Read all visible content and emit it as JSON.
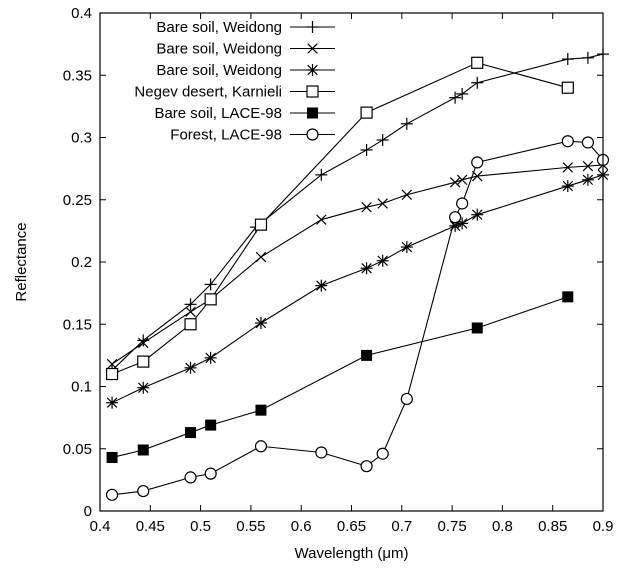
{
  "chart_data": {
    "type": "line",
    "xlabel": "Wavelength (μm)",
    "ylabel": "Reflectance",
    "xlim": [
      0.4,
      0.9
    ],
    "ylim": [
      0,
      0.4
    ],
    "xticks": [
      0.4,
      0.45,
      0.5,
      0.55,
      0.6,
      0.65,
      0.7,
      0.75,
      0.8,
      0.85,
      0.9
    ],
    "yticks": [
      0,
      0.05,
      0.1,
      0.15,
      0.2,
      0.25,
      0.3,
      0.35,
      0.4
    ],
    "xtick_labels": [
      "0.4",
      "0.45",
      "0.5",
      "0.55",
      "0.6",
      "0.65",
      "0.7",
      "0.75",
      "0.8",
      "0.85",
      "0.9"
    ],
    "ytick_labels": [
      "0",
      "0.05",
      "0.1",
      "0.15",
      "0.2",
      "0.25",
      "0.3",
      "0.35",
      "0.4"
    ],
    "grid": false,
    "legend_position": "top-left",
    "series": [
      {
        "name": "Bare soil, Weidong",
        "marker": "plus",
        "color": "#000000",
        "x": [
          0.412,
          0.443,
          0.49,
          0.51,
          0.555,
          0.62,
          0.665,
          0.681,
          0.705,
          0.753,
          0.76,
          0.775,
          0.865,
          0.885,
          0.9
        ],
        "y": [
          0.113,
          0.137,
          0.166,
          0.182,
          0.228,
          0.27,
          0.29,
          0.298,
          0.311,
          0.332,
          0.335,
          0.344,
          0.363,
          0.364,
          0.367
        ]
      },
      {
        "name": "Bare soil, Weidong",
        "marker": "x",
        "color": "#000000",
        "x": [
          0.412,
          0.443,
          0.49,
          0.51,
          0.56,
          0.62,
          0.665,
          0.681,
          0.705,
          0.753,
          0.76,
          0.775,
          0.865,
          0.885,
          0.9
        ],
        "y": [
          0.118,
          0.135,
          0.16,
          0.17,
          0.204,
          0.234,
          0.244,
          0.247,
          0.254,
          0.264,
          0.266,
          0.269,
          0.276,
          0.277,
          0.278
        ]
      },
      {
        "name": "Bare soil, Weidong",
        "marker": "asterisk",
        "color": "#000000",
        "x": [
          0.412,
          0.443,
          0.49,
          0.51,
          0.56,
          0.62,
          0.665,
          0.681,
          0.705,
          0.753,
          0.76,
          0.775,
          0.865,
          0.885,
          0.9
        ],
        "y": [
          0.087,
          0.099,
          0.115,
          0.123,
          0.151,
          0.181,
          0.195,
          0.201,
          0.212,
          0.229,
          0.231,
          0.238,
          0.261,
          0.266,
          0.27
        ]
      },
      {
        "name": "Negev desert, Karnieli",
        "marker": "open-square",
        "color": "#000000",
        "x": [
          0.412,
          0.443,
          0.49,
          0.51,
          0.56,
          0.665,
          0.775,
          0.865
        ],
        "y": [
          0.11,
          0.12,
          0.15,
          0.17,
          0.23,
          0.32,
          0.36,
          0.34
        ]
      },
      {
        "name": "Bare soil, LACE-98",
        "marker": "filled-square",
        "color": "#000000",
        "x": [
          0.412,
          0.443,
          0.49,
          0.51,
          0.56,
          0.665,
          0.775,
          0.865
        ],
        "y": [
          0.043,
          0.049,
          0.063,
          0.069,
          0.081,
          0.125,
          0.147,
          0.172
        ]
      },
      {
        "name": "Forest, LACE-98",
        "marker": "open-circle",
        "color": "#000000",
        "x": [
          0.412,
          0.443,
          0.49,
          0.51,
          0.56,
          0.62,
          0.665,
          0.681,
          0.705,
          0.753,
          0.76,
          0.775,
          0.865,
          0.885,
          0.9
        ],
        "y": [
          0.013,
          0.016,
          0.027,
          0.03,
          0.052,
          0.047,
          0.036,
          0.046,
          0.09,
          0.236,
          0.247,
          0.28,
          0.297,
          0.296,
          0.282
        ]
      }
    ]
  }
}
